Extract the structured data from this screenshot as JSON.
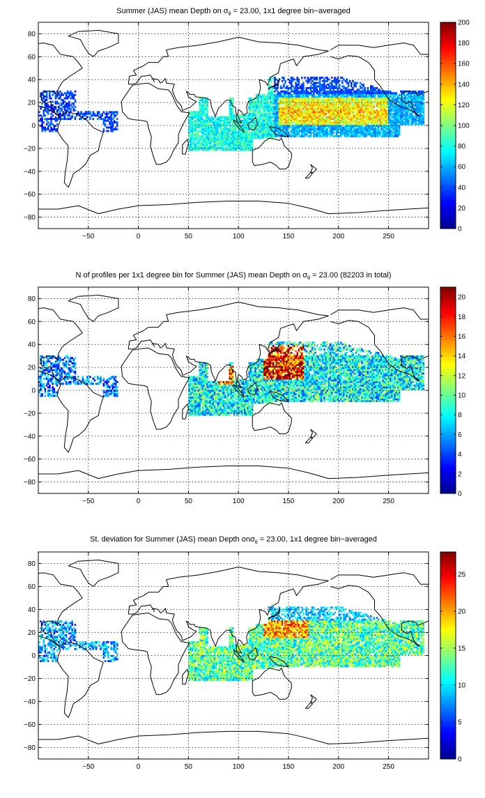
{
  "panels": [
    {
      "id": "mean",
      "title_before": "Summer (JAS) mean Depth on ",
      "sigma": "σ",
      "sub": "θ",
      "title_after": " = 23.00, 1x1 degree bin−averaged",
      "cbar_ticks": [
        "0",
        "20",
        "40",
        "60",
        "80",
        "100",
        "120",
        "140",
        "160",
        "180",
        "200"
      ],
      "cmin": 0,
      "cmax": 200,
      "field": "mean"
    },
    {
      "id": "count",
      "title_before": "N of profiles per 1x1 degree bin for Summer (JAS) mean Depth on ",
      "sigma": "σ",
      "sub": "θ",
      "title_after": " = 23.00 (82203 in total)",
      "cbar_ticks": [
        "0",
        "2",
        "4",
        "6",
        "8",
        "10",
        "12",
        "14",
        "16",
        "18",
        "20"
      ],
      "cmin": 0,
      "cmax": 21,
      "field": "count"
    },
    {
      "id": "std",
      "title_before": "St. deviation for Summer (JAS) mean Depth on",
      "sigma": "σ",
      "sub": "θ",
      "title_after": " = 23.00, 1x1 degree bin−averaged",
      "cbar_ticks": [
        "0",
        "5",
        "10",
        "15",
        "20",
        "25"
      ],
      "cmin": 0,
      "cmax": 28,
      "field": "std"
    }
  ],
  "x_ticks": [
    "-50",
    "0",
    "50",
    "100",
    "150",
    "200",
    "250"
  ],
  "y_ticks": [
    "80",
    "60",
    "40",
    "20",
    "0",
    "-20",
    "-40",
    "-60",
    "-80"
  ],
  "map_extent": {
    "lon": [
      -100,
      290
    ],
    "lat": [
      -90,
      90
    ]
  },
  "colormap": "jet",
  "colors": {
    "land_outline": "#000000",
    "background": "#ffffff"
  }
}
